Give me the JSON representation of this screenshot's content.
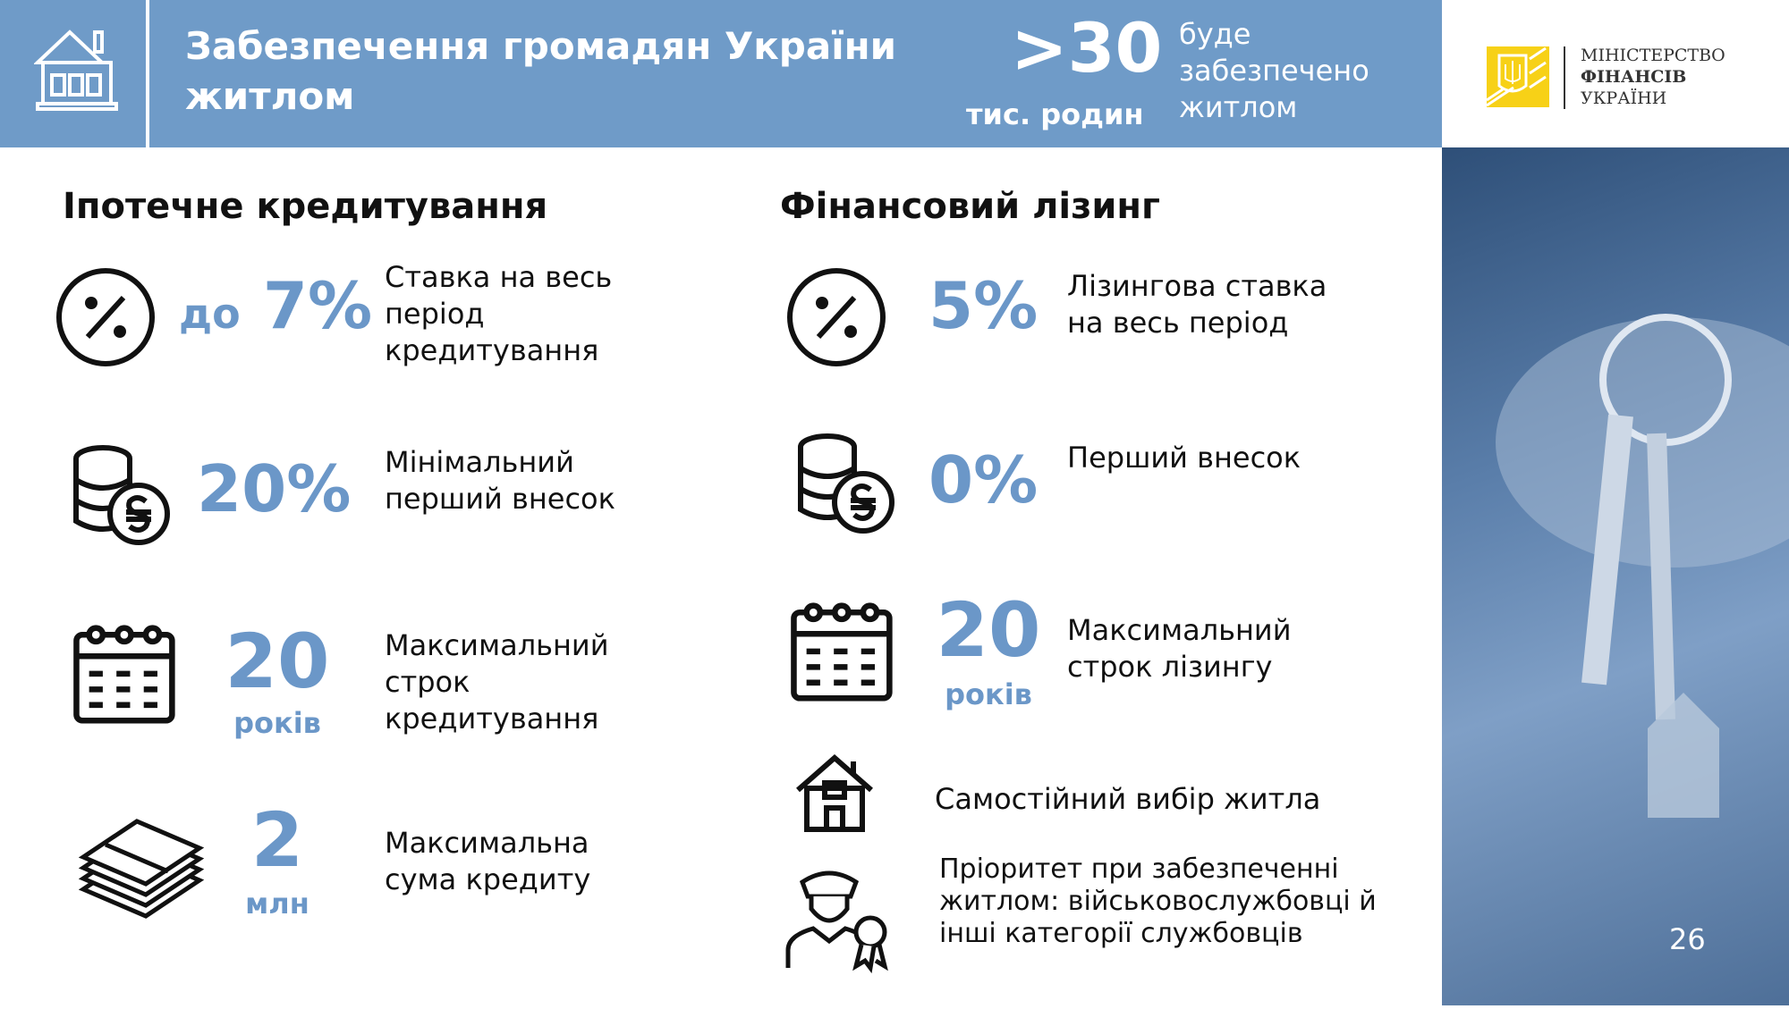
{
  "header": {
    "title": "Забезпечення громадян України житлом",
    "highlight_value": ">30",
    "highlight_unit": "тис. родин",
    "highlight_desc": "буде забезпечено житлом",
    "bg_color": "#6f9bc8"
  },
  "logo": {
    "line1": "МІНІСТЕРСТВО",
    "line2": "ФІНАНСІВ",
    "line3": "УКРАЇНИ",
    "color": "#f7d117"
  },
  "mortgage": {
    "title": "Іпотечне кредитування",
    "items": [
      {
        "icon": "percent-icon",
        "prefix": "до",
        "value": "7%",
        "desc": "Ставка на весь період кредитування"
      },
      {
        "icon": "coins-hryvnia-icon",
        "value": "20%",
        "desc": "Мінімальний перший внесок"
      },
      {
        "icon": "calendar-icon",
        "value": "20",
        "unit": "років",
        "desc": "Максимальний строк кредитування"
      },
      {
        "icon": "money-stack-icon",
        "value": "2",
        "unit": "млн",
        "desc": "Максимальна сума кредиту"
      }
    ]
  },
  "leasing": {
    "title": "Фінансовий лізинг",
    "items": [
      {
        "icon": "percent-icon",
        "value": "5%",
        "desc": "Лізингова ставка на весь період"
      },
      {
        "icon": "coins-hryvnia-icon",
        "value": "0%",
        "desc": "Перший внесок"
      },
      {
        "icon": "calendar-icon",
        "value": "20",
        "unit": "років",
        "desc": "Максимальний строк лізингу"
      },
      {
        "icon": "house-icon",
        "desc": "Самостійний вибір житла"
      },
      {
        "icon": "officer-icon",
        "desc": "Пріоритет при забезпеченні житлом: військовослужбовці й інші категорії службовців"
      }
    ]
  },
  "page_number": "26",
  "accent_color": "#6b97c8"
}
